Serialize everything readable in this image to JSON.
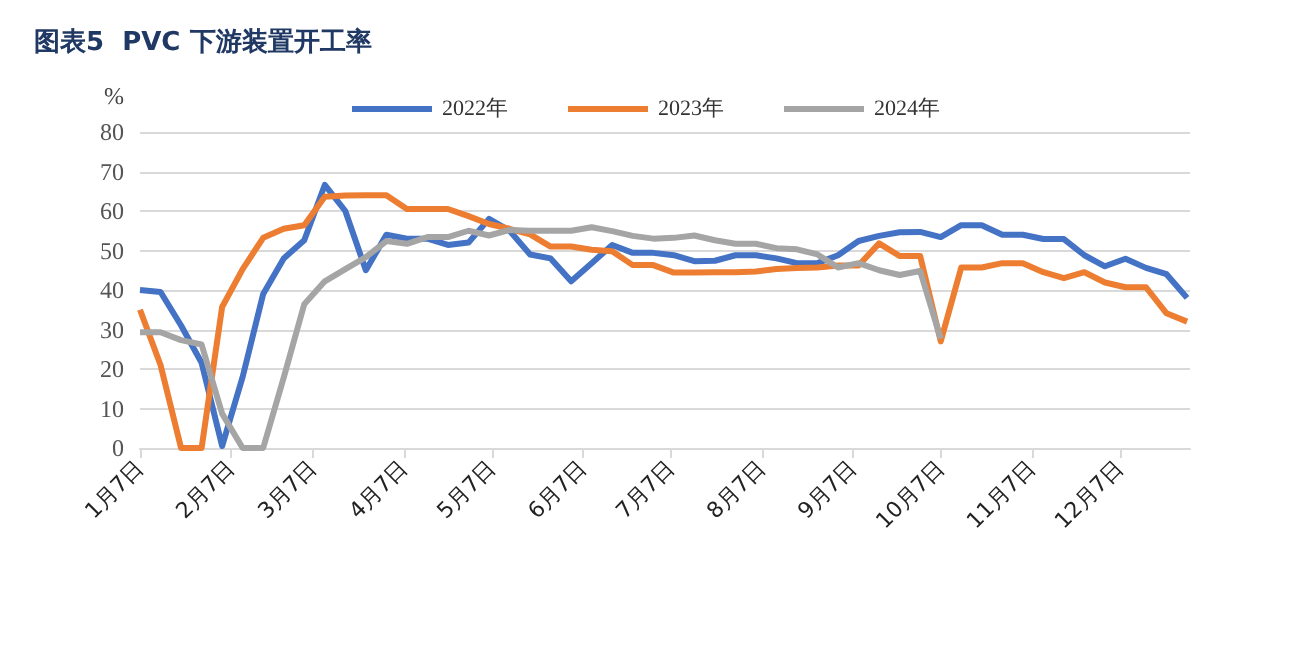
{
  "chart_data": {
    "type": "line",
    "title": "图表5  PVC 下游装置开工率",
    "ylabel": "%",
    "x": [
      "--01-07",
      "--01-14",
      "--01-21",
      "--01-28",
      "--02-04",
      "--02-11",
      "--02-18",
      "--02-25",
      "--03-04",
      "--03-11",
      "--03-18",
      "--03-25",
      "--04-01",
      "--04-08",
      "--04-15",
      "--04-22",
      "--04-29",
      "--05-06",
      "--05-13",
      "--05-20",
      "--05-27",
      "--06-03",
      "--06-10",
      "--06-17",
      "--06-24",
      "--07-01",
      "--07-08",
      "--07-15",
      "--07-22",
      "--07-29",
      "--08-05",
      "--08-12",
      "--08-19",
      "--08-26",
      "--09-02",
      "--09-09",
      "--09-16",
      "--09-23",
      "--09-30",
      "--10-07",
      "--10-14",
      "--10-21",
      "--10-28",
      "--11-04",
      "--11-11",
      "--11-18",
      "--11-25",
      "--12-02",
      "--12-09",
      "--12-16",
      "--12-23",
      "--12-30"
    ],
    "series": [
      {
        "name": "2022年",
        "color": "#4472c4",
        "values": [
          40,
          39.5,
          31,
          21.6,
          0.5,
          18,
          39,
          48,
          52.6,
          66.6,
          60,
          45,
          54,
          53,
          53,
          51.4,
          52,
          58,
          55,
          49,
          48,
          42.2,
          46.8,
          51.4,
          49.4,
          49.4,
          48.8,
          47.3,
          47.4,
          48.8,
          48.8,
          48,
          46.8,
          46.8,
          48.8,
          52.4,
          53.7,
          54.6,
          54.7,
          53.4,
          56.4,
          56.4,
          54,
          54,
          52.9,
          52.9,
          48.8,
          46,
          47.9,
          45.6,
          44,
          38
        ]
      },
      {
        "name": "2023年",
        "color": "#ed7d31",
        "values": [
          35,
          21,
          0,
          0,
          35.7,
          45.3,
          53.2,
          55.5,
          56.4,
          63.6,
          63.9,
          64,
          64,
          60.5,
          60.5,
          60.5,
          58.7,
          56.7,
          55.5,
          54.1,
          51,
          51,
          50.2,
          49.8,
          46.3,
          46.3,
          44.4,
          44.4,
          44.5,
          44.5,
          44.7,
          45.3,
          45.6,
          45.7,
          46.2,
          46.2,
          51.8,
          48.6,
          48.6,
          27,
          45.7,
          45.7,
          46.8,
          46.8,
          44.5,
          43,
          44.5,
          41.9,
          40.7,
          40.7,
          34.1,
          32
        ]
      },
      {
        "name": "2024年",
        "color": "#a5a5a5",
        "values": [
          29.3,
          29.3,
          27.3,
          26.2,
          8.7,
          0,
          0,
          17.8,
          36.4,
          42.2,
          45.3,
          48.3,
          52.4,
          51.7,
          53.4,
          53.4,
          55,
          53.8,
          55.2,
          55,
          55,
          55,
          55.9,
          54.9,
          53.7,
          53,
          53.2,
          53.8,
          52.6,
          51.7,
          51.7,
          50.6,
          50.3,
          49,
          45.7,
          46.8,
          45,
          43.8,
          44.8,
          27.7,
          null,
          null,
          null,
          null,
          null,
          null,
          null,
          null,
          null,
          null,
          null,
          null
        ]
      }
    ],
    "xlim": [
      "--01-07",
      "--12-31"
    ],
    "xticks": [
      {
        "value": "--01-07",
        "label": "1月7日"
      },
      {
        "value": "--02-07",
        "label": "2月7日"
      },
      {
        "value": "--03-07",
        "label": "3月7日"
      },
      {
        "value": "--04-07",
        "label": "4月7日"
      },
      {
        "value": "--05-07",
        "label": "5月7日"
      },
      {
        "value": "--06-07",
        "label": "6月7日"
      },
      {
        "value": "--07-07",
        "label": "7月7日"
      },
      {
        "value": "--08-07",
        "label": "8月7日"
      },
      {
        "value": "--09-07",
        "label": "9月7日"
      },
      {
        "value": "--10-07",
        "label": "10月7日"
      },
      {
        "value": "--11-07",
        "label": "11月7日"
      },
      {
        "value": "--12-07",
        "label": "12月7日"
      }
    ],
    "ylim": [
      0,
      80
    ],
    "yticks": [
      0,
      10,
      20,
      30,
      40,
      50,
      60,
      70,
      80
    ],
    "grid": "y",
    "legend": "top",
    "marker": "none",
    "line_style": "solid"
  }
}
